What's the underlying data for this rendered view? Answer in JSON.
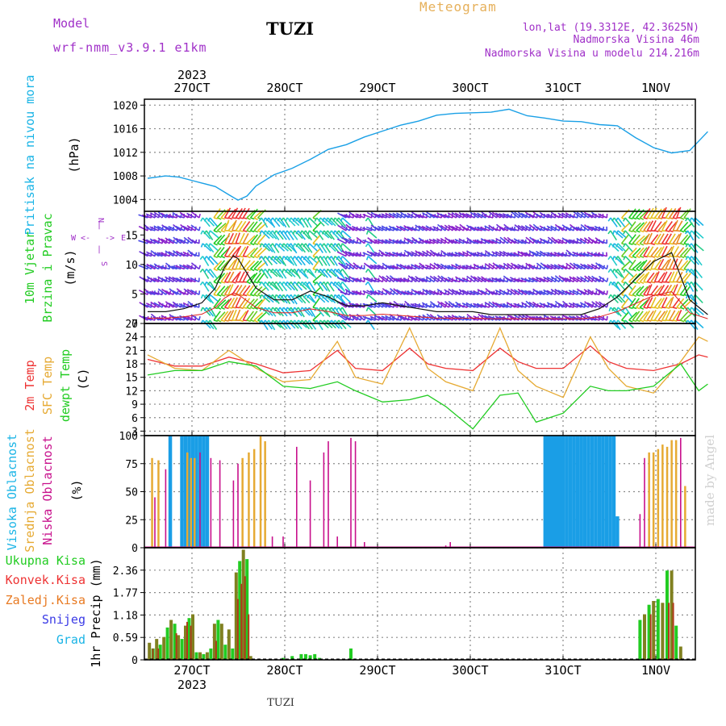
{
  "header": {
    "model_label": "Model",
    "model_name": "wrf-nmm_v3.9.1 e1km",
    "station": "TUZI",
    "meteogram_label": "Meteogram",
    "lonlat": "lon,lat (19.3312E, 42.3625N)",
    "altitude": "Nadmorska Visina 46m",
    "model_altitude": "Nadmorska Visina u modelu 214.216m",
    "year_top": "2023",
    "year_bottom": "2023",
    "footer_station": "TUZI",
    "credit": "made by Angel"
  },
  "colors": {
    "pressure": "#1aa0e6",
    "cyan_label": "#1ab4e6",
    "green_label": "#22cc22",
    "red": "#ee3333",
    "orange": "#e6aa33",
    "purple": "#a030c8",
    "blue": "#1a9ee6",
    "magenta": "#c8108c",
    "olive": "#808020",
    "gray_text": "#c8c8c8"
  },
  "chart_data": [
    {
      "type": "line",
      "panel": "pressure",
      "ylabel_lines": [
        "Pritisak na nivou mora",
        "(hPa)"
      ],
      "x_labels": [
        "27OCT",
        "28OCT",
        "29OCT",
        "30OCT",
        "31OCT",
        "1NOV"
      ],
      "ylim": [
        1002,
        1021
      ],
      "yticks": [
        1004,
        1008,
        1012,
        1016,
        1020
      ],
      "grid": true,
      "series": [
        {
          "x_day": [
            0,
            0.1,
            0.2,
            0.35,
            0.5,
            0.6,
            0.75,
            0.9,
            1.0,
            1.1,
            1.2,
            1.4,
            1.6,
            1.8,
            2.0,
            2.2,
            2.4,
            2.6,
            2.8,
            3.0,
            3.2,
            3.4,
            3.6,
            3.8,
            4.0,
            4.2,
            4.4,
            4.6,
            4.8,
            5.0,
            5.2,
            5.4,
            5.6,
            5.8,
            6.0,
            6.2
          ],
          "values": [
            1007.6,
            1007.8,
            1008.0,
            1007.8,
            1007.2,
            1006.8,
            1006.2,
            1004.8,
            1003.9,
            1004.6,
            1006.3,
            1008.2,
            1009.3,
            1010.8,
            1012.5,
            1013.3,
            1014.6,
            1015.6,
            1016.6,
            1017.3,
            1018.3,
            1018.6,
            1018.7,
            1018.8,
            1019.3,
            1018.2,
            1017.8,
            1017.3,
            1017.2,
            1016.7,
            1016.5,
            1014.5,
            1012.8,
            1011.9,
            1012.3,
            1015.5
          ]
        }
      ]
    },
    {
      "type": "barbs",
      "panel": "wind",
      "ylabel_lines": [
        "10m Vjetar",
        "Brzina i Pravac",
        "(m/s)"
      ],
      "compass": [
        "N",
        "S",
        "E",
        "W",
        "<-",
        "->",
        "|",
        "|"
      ],
      "ylim": [
        0,
        19
      ],
      "yticks": [
        0,
        5,
        10,
        15
      ],
      "speed_series": {
        "x_day": [
          0,
          0.2,
          0.4,
          0.6,
          0.75,
          0.85,
          0.95,
          1.0,
          1.1,
          1.2,
          1.4,
          1.6,
          1.8,
          2.0,
          2.2,
          2.4,
          2.6,
          2.8,
          3.0,
          3.2,
          3.4,
          3.6,
          3.8,
          4.0,
          4.2,
          4.4,
          4.6,
          4.8,
          5.0,
          5.2,
          5.4,
          5.6,
          5.8,
          6.0,
          6.2
        ],
        "values": [
          2,
          2,
          2.5,
          3.5,
          6,
          9.5,
          11.5,
          11,
          8.5,
          6,
          4,
          4,
          5.5,
          4.5,
          3,
          3,
          3.5,
          3,
          2.5,
          2,
          2,
          2,
          1.5,
          1.5,
          1.5,
          1.5,
          1.5,
          1.5,
          2.5,
          4.5,
          7.5,
          10.5,
          12,
          4,
          1.5
        ]
      }
    },
    {
      "type": "line",
      "panel": "temperature",
      "ylabel_lines": [
        "2m Temp",
        "SFC Temp",
        "dewpt Temp",
        "(C)"
      ],
      "ylim": [
        2,
        27
      ],
      "yticks": [
        3,
        6,
        9,
        12,
        15,
        18,
        21,
        24,
        27
      ],
      "grid": true,
      "series": [
        {
          "name": "2m Temp",
          "color": "#ee3333",
          "x_day": [
            0,
            0.3,
            0.6,
            0.9,
            1.2,
            1.5,
            1.8,
            2.1,
            2.3,
            2.6,
            2.9,
            3.1,
            3.3,
            3.6,
            3.9,
            4.1,
            4.3,
            4.6,
            4.9,
            5.1,
            5.3,
            5.6,
            5.9,
            6.1,
            6.2
          ],
          "values": [
            19,
            17.5,
            17.5,
            19.5,
            18,
            16,
            16.5,
            21,
            17,
            16.5,
            21.5,
            18,
            17,
            16.5,
            21.5,
            18.5,
            17,
            17,
            22,
            18.5,
            17,
            16.5,
            18,
            20,
            19.5
          ]
        },
        {
          "name": "SFC Temp",
          "color": "#e6aa33",
          "x_day": [
            0,
            0.3,
            0.6,
            0.9,
            1.2,
            1.5,
            1.8,
            2.1,
            2.3,
            2.6,
            2.9,
            3.1,
            3.3,
            3.6,
            3.9,
            4.1,
            4.3,
            4.6,
            4.9,
            5.1,
            5.3,
            5.6,
            5.9,
            6.1,
            6.2
          ],
          "values": [
            20,
            17,
            16.5,
            21,
            17,
            14,
            14.5,
            23,
            15,
            13.5,
            26,
            17,
            14,
            12,
            26,
            16.5,
            13,
            10.5,
            24,
            17,
            13,
            11.5,
            18.5,
            24,
            23
          ]
        },
        {
          "name": "dewpt Temp",
          "color": "#22cc22",
          "x_day": [
            0,
            0.3,
            0.6,
            0.9,
            1.2,
            1.5,
            1.8,
            2.1,
            2.3,
            2.6,
            2.9,
            3.1,
            3.3,
            3.6,
            3.9,
            4.1,
            4.3,
            4.6,
            4.9,
            5.1,
            5.3,
            5.6,
            5.9,
            6.1,
            6.2
          ],
          "values": [
            15.5,
            16.5,
            16.5,
            18.5,
            17.5,
            13,
            12.5,
            14,
            12,
            9.5,
            10,
            11,
            8.5,
            3.5,
            11,
            11.5,
            5,
            7,
            13,
            12,
            12,
            13,
            18,
            12,
            13.5
          ]
        }
      ]
    },
    {
      "type": "bar",
      "panel": "cloud",
      "ylabel_lines": [
        "Visoka Oblacnost",
        "Srednja Oblacnost",
        "Niska Oblacnost",
        "(%)"
      ],
      "ylim": [
        0,
        100
      ],
      "yticks": [
        0,
        25,
        50,
        75,
        100
      ],
      "grid": true,
      "series": [
        {
          "name": "Visoka Oblacnost",
          "color": "#1a9ee6",
          "x_day": [
            0.25,
            0.38,
            0.42,
            0.46,
            0.5,
            0.54,
            0.58,
            0.62,
            0.66,
            4.4,
            4.44,
            4.48,
            4.52,
            4.56,
            4.6,
            4.64,
            4.68,
            4.72,
            4.76,
            4.8,
            4.84,
            4.88,
            4.92,
            4.96,
            5.0,
            5.04,
            5.08,
            5.12,
            5.16,
            5.2
          ],
          "values": [
            100,
            100,
            100,
            100,
            100,
            100,
            100,
            100,
            100,
            100,
            100,
            100,
            100,
            100,
            100,
            100,
            100,
            100,
            100,
            100,
            100,
            100,
            100,
            100,
            100,
            100,
            100,
            100,
            100,
            28
          ]
        },
        {
          "name": "Srednja Oblacnost",
          "color": "#e6aa33",
          "x_day": [
            0.05,
            0.12,
            0.44,
            0.48,
            0.52,
            1.05,
            1.12,
            1.18,
            1.25,
            1.3,
            5.55,
            5.6,
            5.65,
            5.7,
            5.75,
            5.8,
            5.85,
            5.95
          ],
          "values": [
            80,
            78,
            85,
            80,
            80,
            80,
            85,
            88,
            100,
            95,
            85,
            85,
            88,
            92,
            90,
            96,
            96,
            55
          ]
        },
        {
          "name": "Niska Oblacnost",
          "color": "#c8108c",
          "x_day": [
            0.08,
            0.2,
            0.58,
            0.7,
            0.8,
            0.95,
            1.0,
            1.38,
            1.5,
            1.65,
            1.8,
            1.95,
            2.0,
            2.1,
            2.25,
            2.3,
            2.4,
            3.3,
            3.35,
            5.45,
            5.5,
            5.9
          ],
          "values": [
            45,
            70,
            85,
            80,
            78,
            60,
            75,
            10,
            10,
            90,
            60,
            85,
            95,
            10,
            98,
            95,
            5,
            2,
            5,
            30,
            80,
            98
          ]
        }
      ]
    },
    {
      "type": "bar",
      "panel": "precip",
      "ylabel_lines": [
        "1hr Precip (mm)"
      ],
      "legend": [
        "Ukupna Kisa",
        "Konvek.Kisa",
        "Zaledj.Kisa",
        "Snijeg",
        "Grad"
      ],
      "ylim": [
        0,
        2.95
      ],
      "yticks": [
        0,
        0.59,
        1.18,
        1.77,
        2.36
      ],
      "grid": true,
      "series": [
        {
          "name": "Ukupna Kisa",
          "color": "#22cc22",
          "x_day": [
            0.02,
            0.06,
            0.1,
            0.14,
            0.18,
            0.22,
            0.26,
            0.3,
            0.34,
            0.38,
            0.42,
            0.46,
            0.5,
            0.54,
            0.58,
            0.62,
            0.66,
            0.7,
            0.74,
            0.78,
            0.82,
            0.86,
            0.9,
            0.94,
            0.98,
            1.02,
            1.06,
            1.1,
            1.14,
            1.5,
            1.6,
            1.7,
            1.75,
            1.8,
            1.85,
            1.9,
            2.25,
            5.45,
            5.5,
            5.55,
            5.6,
            5.65,
            5.7,
            5.75,
            5.8,
            5.85,
            5.9,
            5.95
          ],
          "values": [
            0.45,
            0.3,
            0.55,
            0.4,
            0.6,
            0.85,
            1.05,
            0.95,
            0.65,
            0.55,
            0.9,
            1.1,
            1.2,
            0.2,
            0.2,
            0.15,
            0.2,
            0.3,
            0.95,
            1.05,
            0.95,
            0.4,
            0.8,
            0.3,
            2.3,
            2.6,
            2.9,
            2.65,
            0.1,
            0.05,
            0.1,
            0.15,
            0.15,
            0.12,
            0.15,
            0.05,
            0.3,
            1.05,
            1.2,
            1.45,
            1.55,
            1.6,
            1.5,
            2.35,
            2.35,
            0.9,
            0.35,
            0
          ]
        },
        {
          "name": "Konvek.Kisa",
          "color": "#ee3333",
          "x_day": [
            0.04,
            0.1,
            0.3,
            0.42,
            0.46,
            0.74,
            0.98,
            1.02,
            1.06,
            1.1,
            5.55,
            5.75,
            5.8
          ],
          "values": [
            0.3,
            0.3,
            0.7,
            1.0,
            0.9,
            0.5,
            1.6,
            2.0,
            2.2,
            1.2,
            1.2,
            1.5,
            1.5
          ]
        }
      ]
    }
  ]
}
